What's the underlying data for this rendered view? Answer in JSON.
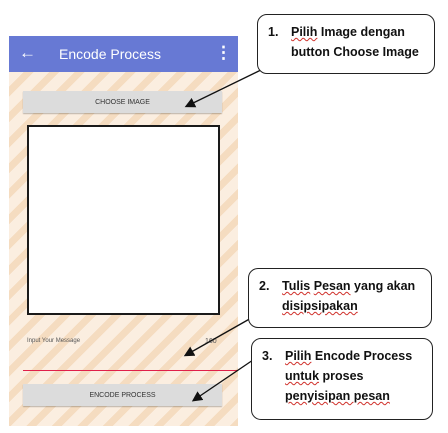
{
  "app": {
    "title": "Encode Process"
  },
  "buttons": {
    "choose_image": "CHOOSE IMAGE",
    "encode_process": "ENCODE PROCESS"
  },
  "message": {
    "placeholder": "Input Your Message",
    "counter": "160"
  },
  "callouts": [
    {
      "number": "1.",
      "line1_a": "Pilih",
      "line1_b": " Image dengan",
      "line2": "button Choose Image"
    },
    {
      "number": "2.",
      "line1_a": "Tulis",
      "line1_b": " ",
      "line1_c": "Pesan",
      "line1_d": " yang akan",
      "line2": "disipsipakan"
    },
    {
      "number": "3.",
      "line1_a": "Pilih",
      "line1_b": " Encode Process",
      "line2": "untuk",
      "line2_b": " proses",
      "line3": "penyisipan pesan"
    }
  ],
  "colors": {
    "appbar": "#6779d4",
    "accent_line": "#e0204a"
  },
  "icons": [
    "back-arrow-icon",
    "overflow-menu-icon"
  ]
}
